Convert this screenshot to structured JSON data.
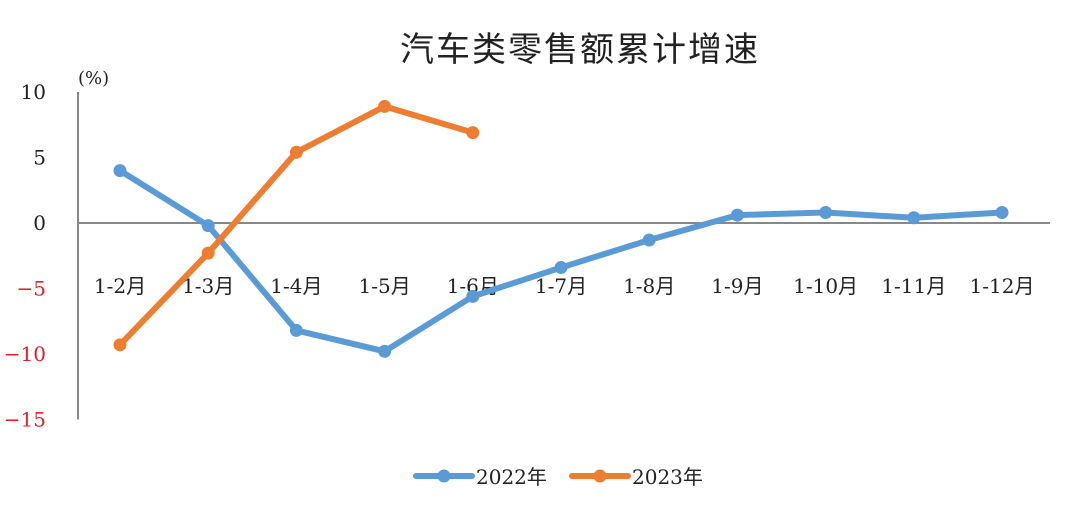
{
  "chart_data": {
    "type": "line",
    "title": "汽车类零售额累计增速",
    "ylabel": "(%)",
    "xlabel": "",
    "ylim": [
      -15,
      10
    ],
    "yticks": [
      10,
      5,
      0,
      -5,
      -10,
      -15
    ],
    "negative_tick_color": "#e0202a",
    "grid": false,
    "legend_position": "bottom",
    "categories": [
      "1-2月",
      "1-3月",
      "1-4月",
      "1-5月",
      "1-6月",
      "1-7月",
      "1-8月",
      "1-9月",
      "1-10月",
      "1-11月",
      "1-12月"
    ],
    "series": [
      {
        "name": "2022年",
        "color": "#5b9bd5",
        "values": [
          4.0,
          -0.2,
          -8.2,
          -9.8,
          -5.6,
          -3.4,
          -1.3,
          0.6,
          0.8,
          0.4,
          0.8
        ]
      },
      {
        "name": "2023年",
        "color": "#ed7d31",
        "values": [
          -9.3,
          -2.3,
          5.4,
          8.9,
          6.9,
          null,
          null,
          null,
          null,
          null,
          null
        ]
      }
    ]
  }
}
